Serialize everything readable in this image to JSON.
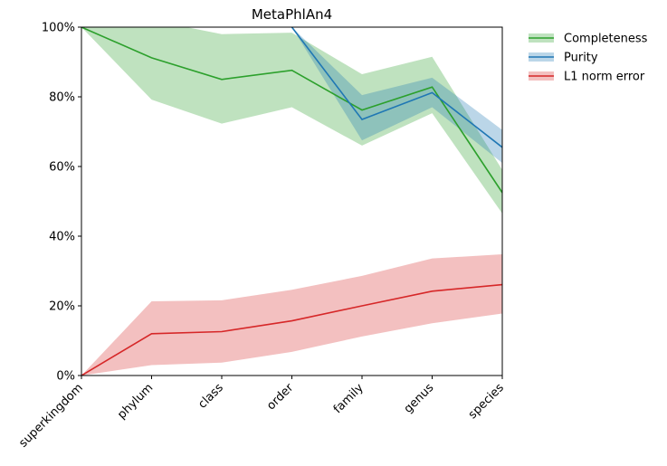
{
  "chart_data": {
    "type": "line",
    "title": "MetaPhlAn4",
    "xlabel": "",
    "ylabel": "",
    "categories": [
      "superkingdom",
      "phylum",
      "class",
      "order",
      "family",
      "genus",
      "species"
    ],
    "ylim": [
      0,
      100
    ],
    "yticks": [
      0,
      20,
      40,
      60,
      80,
      100
    ],
    "ytick_labels": [
      "0%",
      "20%",
      "40%",
      "60%",
      "80%",
      "100%"
    ],
    "grid": false,
    "legend_position": "outside-top-right",
    "series": [
      {
        "name": "Completeness",
        "color": "#2ca02c",
        "band_color": "#2ca02c",
        "values": [
          100,
          91.2,
          85.0,
          87.6,
          76.2,
          82.8,
          52.5
        ],
        "lower": [
          100,
          79.2,
          72.3,
          77.0,
          66.0,
          75.3,
          46.5
        ],
        "upper": [
          100,
          102.0,
          98.0,
          98.4,
          86.5,
          91.5,
          59.0
        ]
      },
      {
        "name": "Purity",
        "color": "#1f77b4",
        "band_color": "#1f77b4",
        "values": [
          null,
          null,
          null,
          100,
          73.5,
          81.2,
          65.5
        ],
        "lower": [
          null,
          null,
          null,
          100,
          67.5,
          77.0,
          61.0
        ],
        "upper": [
          null,
          null,
          null,
          100,
          80.5,
          85.5,
          70.5
        ]
      },
      {
        "name": "L1 norm error",
        "color": "#d62728",
        "band_color": "#e57373",
        "values": [
          0,
          12.0,
          12.6,
          15.7,
          20.0,
          24.2,
          26.1
        ],
        "lower": [
          0,
          3.0,
          3.7,
          6.8,
          11.2,
          15.0,
          17.8
        ],
        "upper": [
          0,
          21.3,
          21.6,
          24.6,
          28.6,
          33.6,
          34.8
        ]
      }
    ]
  }
}
